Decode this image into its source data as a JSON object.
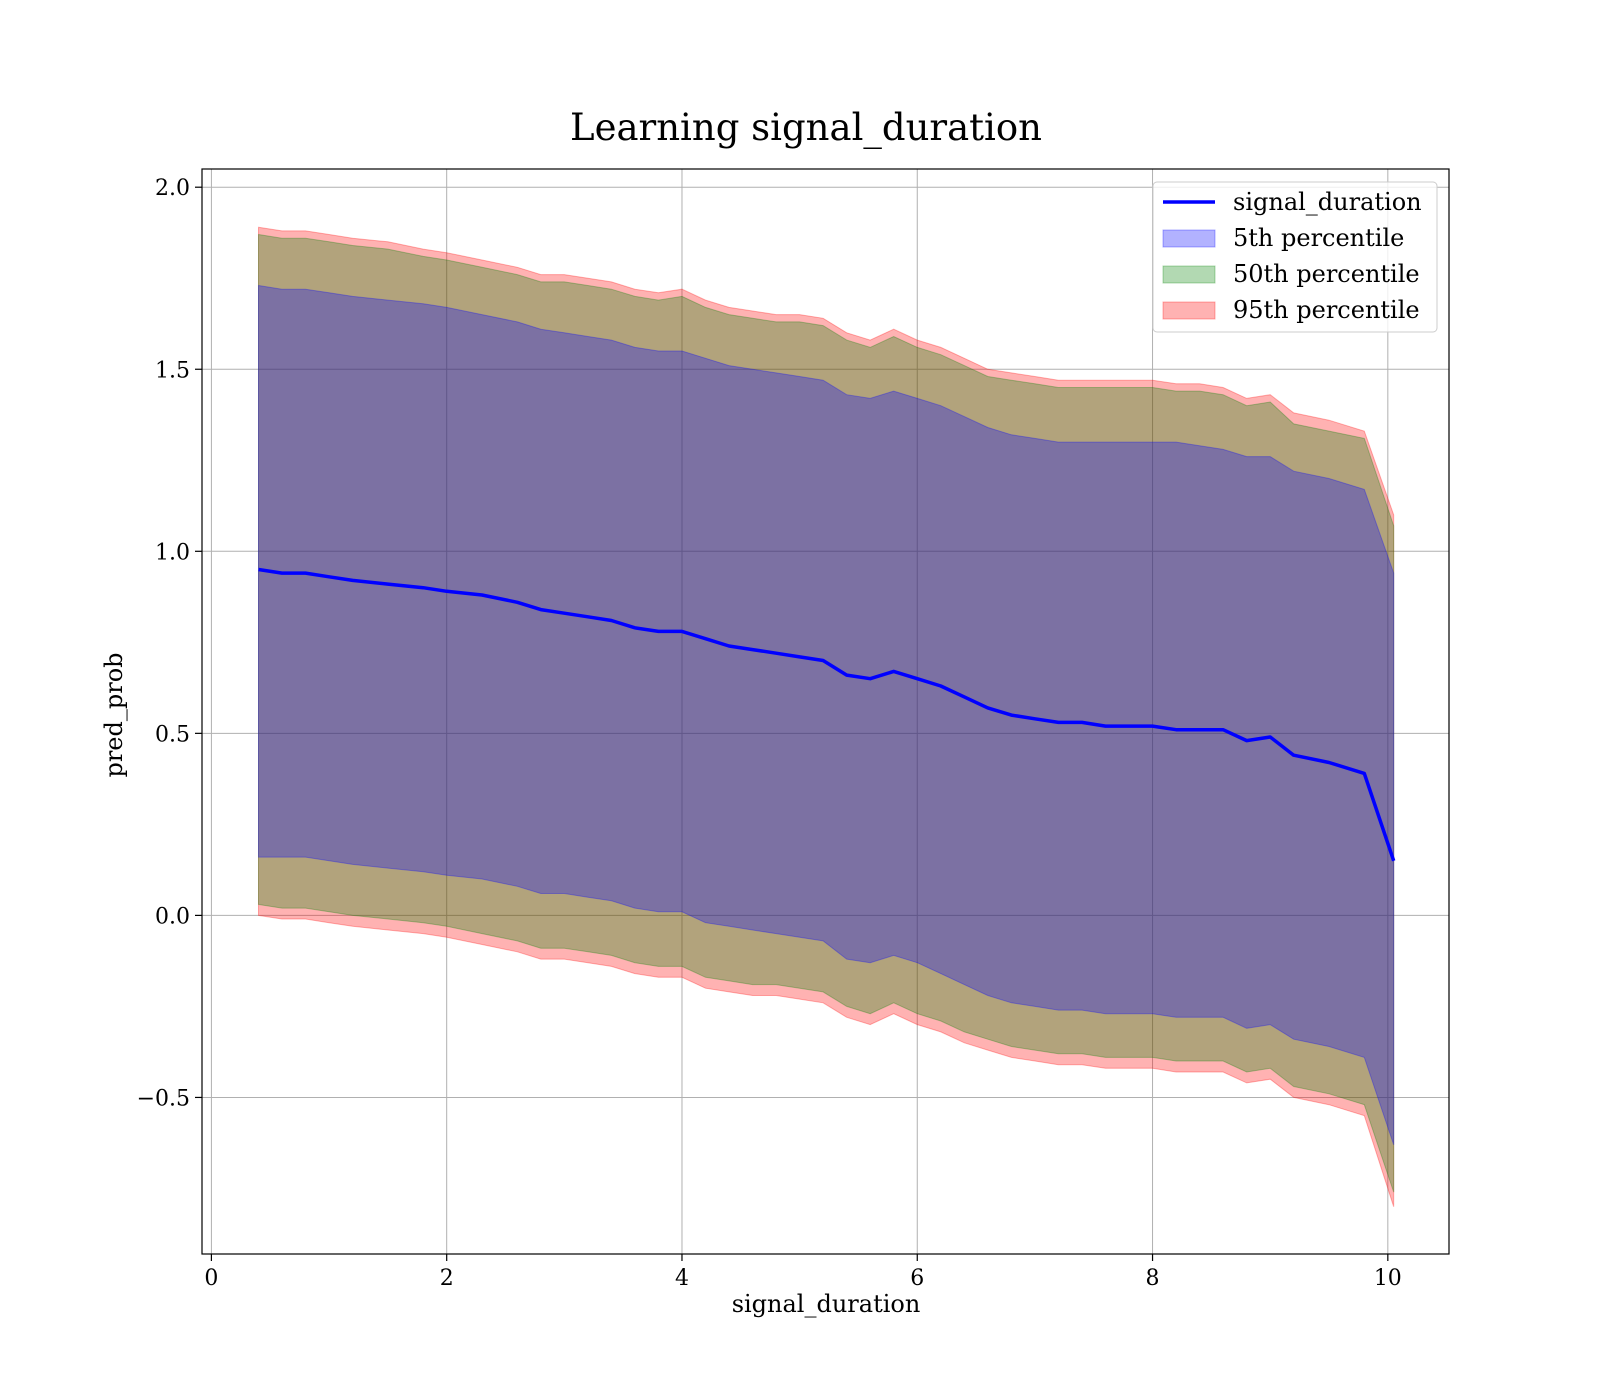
{
  "chart_data": {
    "type": "line",
    "title": "Learning signal_duration",
    "xlabel": "signal_duration",
    "ylabel": "pred_prob",
    "xlim": [
      -0.08,
      10.52
    ],
    "ylim": [
      -0.93,
      2.05
    ],
    "xticks": [
      0,
      2,
      4,
      6,
      8,
      10
    ],
    "xtick_labels": [
      "0",
      "2",
      "4",
      "6",
      "8",
      "10"
    ],
    "yticks": [
      -0.5,
      0.0,
      0.5,
      1.0,
      1.5,
      2.0
    ],
    "ytick_labels": [
      "−0.5",
      "0.0",
      "0.5",
      "1.0",
      "1.5",
      "2.0"
    ],
    "grid": true,
    "legend_position": "top-right",
    "x": [
      0.4,
      0.6,
      0.8,
      1.0,
      1.2,
      1.5,
      1.8,
      2.0,
      2.3,
      2.6,
      2.8,
      3.0,
      3.2,
      3.4,
      3.6,
      3.8,
      4.0,
      4.2,
      4.4,
      4.6,
      4.8,
      5.0,
      5.2,
      5.4,
      5.6,
      5.8,
      6.0,
      6.2,
      6.4,
      6.6,
      6.8,
      7.0,
      7.2,
      7.4,
      7.6,
      7.8,
      8.0,
      8.2,
      8.4,
      8.6,
      8.8,
      9.0,
      9.2,
      9.5,
      9.8,
      10.05
    ],
    "line": {
      "name": "signal_duration",
      "color": "#0000ff",
      "values": [
        0.95,
        0.94,
        0.94,
        0.93,
        0.92,
        0.91,
        0.9,
        0.89,
        0.88,
        0.86,
        0.84,
        0.83,
        0.82,
        0.81,
        0.79,
        0.78,
        0.78,
        0.76,
        0.74,
        0.73,
        0.72,
        0.71,
        0.7,
        0.66,
        0.65,
        0.67,
        0.65,
        0.63,
        0.6,
        0.57,
        0.55,
        0.54,
        0.53,
        0.53,
        0.52,
        0.52,
        0.52,
        0.51,
        0.51,
        0.51,
        0.48,
        0.49,
        0.44,
        0.42,
        0.39,
        0.15
      ]
    },
    "bands": [
      {
        "name": "95th percentile",
        "color": "#ff0000",
        "opacity": 0.3,
        "upper": [
          1.89,
          1.88,
          1.88,
          1.87,
          1.86,
          1.85,
          1.83,
          1.82,
          1.8,
          1.78,
          1.76,
          1.76,
          1.75,
          1.74,
          1.72,
          1.71,
          1.72,
          1.69,
          1.67,
          1.66,
          1.65,
          1.65,
          1.64,
          1.6,
          1.58,
          1.61,
          1.58,
          1.56,
          1.53,
          1.5,
          1.49,
          1.48,
          1.47,
          1.47,
          1.47,
          1.47,
          1.47,
          1.46,
          1.46,
          1.45,
          1.42,
          1.43,
          1.38,
          1.36,
          1.33,
          1.1
        ],
        "lower": [
          0.0,
          -0.01,
          -0.01,
          -0.02,
          -0.03,
          -0.04,
          -0.05,
          -0.06,
          -0.08,
          -0.1,
          -0.12,
          -0.12,
          -0.13,
          -0.14,
          -0.16,
          -0.17,
          -0.17,
          -0.2,
          -0.21,
          -0.22,
          -0.22,
          -0.23,
          -0.24,
          -0.28,
          -0.3,
          -0.27,
          -0.3,
          -0.32,
          -0.35,
          -0.37,
          -0.39,
          -0.4,
          -0.41,
          -0.41,
          -0.42,
          -0.42,
          -0.42,
          -0.43,
          -0.43,
          -0.43,
          -0.46,
          -0.45,
          -0.5,
          -0.52,
          -0.55,
          -0.8
        ]
      },
      {
        "name": "50th percentile",
        "color": "#008000",
        "opacity": 0.3,
        "upper": [
          1.87,
          1.86,
          1.86,
          1.85,
          1.84,
          1.83,
          1.81,
          1.8,
          1.78,
          1.76,
          1.74,
          1.74,
          1.73,
          1.72,
          1.7,
          1.69,
          1.7,
          1.67,
          1.65,
          1.64,
          1.63,
          1.63,
          1.62,
          1.58,
          1.56,
          1.59,
          1.56,
          1.54,
          1.51,
          1.48,
          1.47,
          1.46,
          1.45,
          1.45,
          1.45,
          1.45,
          1.45,
          1.44,
          1.44,
          1.43,
          1.4,
          1.41,
          1.35,
          1.33,
          1.31,
          1.07
        ],
        "lower": [
          0.03,
          0.02,
          0.02,
          0.01,
          0.0,
          -0.01,
          -0.02,
          -0.03,
          -0.05,
          -0.07,
          -0.09,
          -0.09,
          -0.1,
          -0.11,
          -0.13,
          -0.14,
          -0.14,
          -0.17,
          -0.18,
          -0.19,
          -0.19,
          -0.2,
          -0.21,
          -0.25,
          -0.27,
          -0.24,
          -0.27,
          -0.29,
          -0.32,
          -0.34,
          -0.36,
          -0.37,
          -0.38,
          -0.38,
          -0.39,
          -0.39,
          -0.39,
          -0.4,
          -0.4,
          -0.4,
          -0.43,
          -0.42,
          -0.47,
          -0.49,
          -0.52,
          -0.76
        ]
      },
      {
        "name": "5th percentile",
        "color": "#0000ff",
        "opacity": 0.3,
        "upper": [
          1.73,
          1.72,
          1.72,
          1.71,
          1.7,
          1.69,
          1.68,
          1.67,
          1.65,
          1.63,
          1.61,
          1.6,
          1.59,
          1.58,
          1.56,
          1.55,
          1.55,
          1.53,
          1.51,
          1.5,
          1.49,
          1.48,
          1.47,
          1.43,
          1.42,
          1.44,
          1.42,
          1.4,
          1.37,
          1.34,
          1.32,
          1.31,
          1.3,
          1.3,
          1.3,
          1.3,
          1.3,
          1.3,
          1.29,
          1.28,
          1.26,
          1.26,
          1.22,
          1.2,
          1.17,
          0.94
        ],
        "lower": [
          0.16,
          0.16,
          0.16,
          0.15,
          0.14,
          0.13,
          0.12,
          0.11,
          0.1,
          0.08,
          0.06,
          0.06,
          0.05,
          0.04,
          0.02,
          0.01,
          0.01,
          -0.02,
          -0.03,
          -0.04,
          -0.05,
          -0.06,
          -0.07,
          -0.12,
          -0.13,
          -0.11,
          -0.13,
          -0.16,
          -0.19,
          -0.22,
          -0.24,
          -0.25,
          -0.26,
          -0.26,
          -0.27,
          -0.27,
          -0.27,
          -0.28,
          -0.28,
          -0.28,
          -0.31,
          -0.3,
          -0.34,
          -0.36,
          -0.39,
          -0.63
        ]
      }
    ],
    "legend": [
      {
        "label": "signal_duration",
        "kind": "line",
        "color": "#0000ff",
        "opacity": 1
      },
      {
        "label": "5th percentile",
        "kind": "patch",
        "color": "#0000ff",
        "opacity": 0.3
      },
      {
        "label": "50th percentile",
        "kind": "patch",
        "color": "#008000",
        "opacity": 0.3
      },
      {
        "label": "95th percentile",
        "kind": "patch",
        "color": "#ff0000",
        "opacity": 0.3
      }
    ]
  }
}
